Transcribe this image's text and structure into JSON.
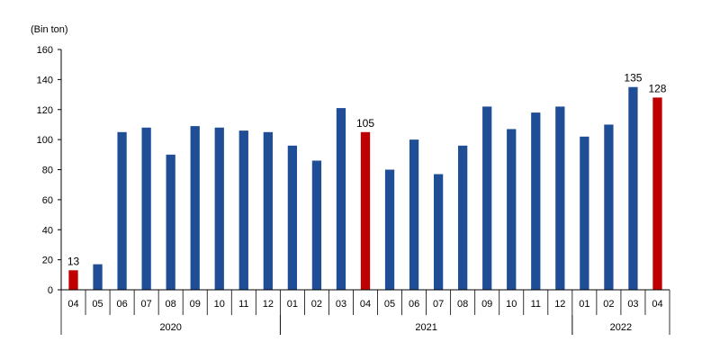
{
  "chart_data": {
    "type": "bar",
    "unit_label": "(Bin ton)",
    "ylim": [
      0,
      160
    ],
    "yticks": [
      0,
      20,
      40,
      60,
      80,
      100,
      120,
      140,
      160
    ],
    "grid": false,
    "categories": [
      "04",
      "05",
      "06",
      "07",
      "08",
      "09",
      "10",
      "11",
      "12",
      "01",
      "02",
      "03",
      "04",
      "05",
      "06",
      "07",
      "08",
      "09",
      "10",
      "11",
      "12",
      "01",
      "02",
      "03",
      "04"
    ],
    "values": [
      13,
      17,
      105,
      108,
      90,
      109,
      108,
      106,
      105,
      96,
      86,
      121,
      105,
      80,
      100,
      77,
      96,
      122,
      107,
      118,
      122,
      102,
      110,
      135,
      128
    ],
    "highlight": [
      true,
      false,
      false,
      false,
      false,
      false,
      false,
      false,
      false,
      false,
      false,
      false,
      true,
      false,
      false,
      false,
      false,
      false,
      false,
      false,
      false,
      false,
      false,
      false,
      true
    ],
    "data_labels": [
      {
        "index": 0,
        "text": "13"
      },
      {
        "index": 12,
        "text": "105"
      },
      {
        "index": 23,
        "text": "135"
      },
      {
        "index": 24,
        "text": "128"
      }
    ],
    "year_groups": [
      {
        "label": "2020",
        "start": 0,
        "count": 9
      },
      {
        "label": "2021",
        "start": 9,
        "count": 12
      },
      {
        "label": "2022",
        "start": 21,
        "count": 4
      }
    ],
    "colors": {
      "default": "#1F4E97",
      "highlight": "#C00000",
      "axis": "#000000"
    }
  }
}
